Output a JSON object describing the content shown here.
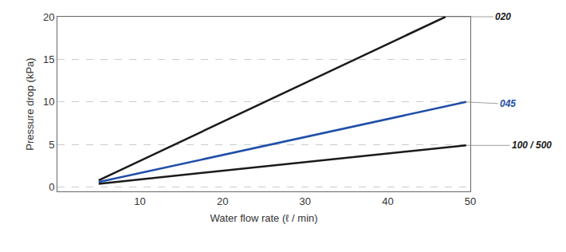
{
  "chart_data": {
    "type": "line",
    "x_label": "Water flow rate (ℓ / min)",
    "y_label": "Pressure drop (kPa)",
    "xlim": [
      0,
      50
    ],
    "xticks": [
      10,
      20,
      30,
      40,
      50
    ],
    "ylim": [
      -0.5,
      20
    ],
    "yticks": [
      0,
      5,
      10,
      15,
      20
    ],
    "grid": true,
    "series": [
      {
        "name": "020",
        "color": "#1a1a1a",
        "x": [
          5,
          47
        ],
        "values": [
          0.8,
          20
        ]
      },
      {
        "name": "045",
        "color": "#1f4ea8",
        "x": [
          5,
          49.5
        ],
        "values": [
          0.6,
          10
        ]
      },
      {
        "name": "100 / 500",
        "color": "#1a1a1a",
        "x": [
          5,
          49.5
        ],
        "values": [
          0.4,
          4.9
        ]
      }
    ]
  }
}
